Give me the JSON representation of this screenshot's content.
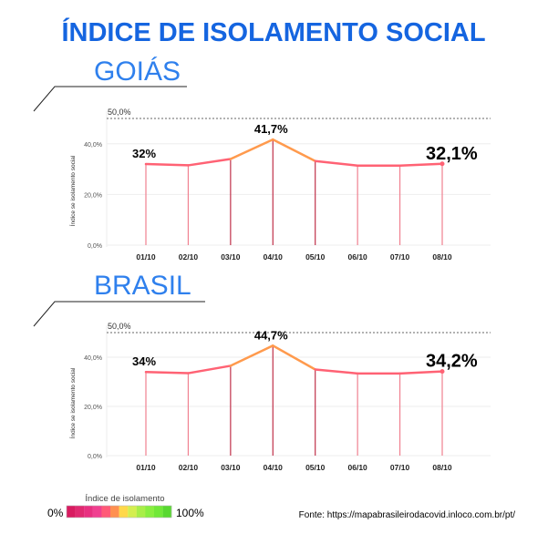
{
  "title": "ÍNDICE DE ISOLAMENTO SOCIAL",
  "colors": {
    "title": "#1565e0",
    "subtitle": "#2f80ed",
    "line_low": "#ff6274",
    "line_peak": "#ff9a4d",
    "stem_light": "#f08090",
    "stem_dark": "#c0304a",
    "grid": "#eeeeee",
    "ref": "#999999"
  },
  "chart_data": [
    {
      "type": "line",
      "title": "GOIÁS",
      "ylabel": "Índice se isolamento social",
      "categories": [
        "01/10",
        "02/10",
        "03/10",
        "04/10",
        "05/10",
        "06/10",
        "07/10",
        "08/10"
      ],
      "values": [
        32,
        31.5,
        34,
        41.7,
        33.2,
        31.4,
        31.4,
        32.1
      ],
      "ylim": [
        0,
        50
      ],
      "yticks": [
        "0,0%",
        "20,0%",
        "40,0%"
      ],
      "reference_line": {
        "value": 50,
        "label": "50,0%"
      },
      "annotations": [
        {
          "index": 0,
          "label": "32%"
        },
        {
          "index": 3,
          "label": "41,7%"
        },
        {
          "index": 7,
          "label": "32,1%"
        }
      ]
    },
    {
      "type": "line",
      "title": "BRASIL",
      "ylabel": "Índice se isolamento social",
      "categories": [
        "01/10",
        "02/10",
        "03/10",
        "04/10",
        "05/10",
        "06/10",
        "07/10",
        "08/10"
      ],
      "values": [
        34,
        33.5,
        36.5,
        44.7,
        35,
        33.4,
        33.4,
        34.2
      ],
      "ylim": [
        0,
        50
      ],
      "yticks": [
        "0,0%",
        "20,0%",
        "40,0%"
      ],
      "reference_line": {
        "value": 50,
        "label": "50,0%"
      },
      "annotations": [
        {
          "index": 0,
          "label": "34%"
        },
        {
          "index": 3,
          "label": "44,7%"
        },
        {
          "index": 7,
          "label": "34,2%"
        }
      ]
    }
  ],
  "legend": {
    "title": "Índice de isolamento",
    "min_label": "0%",
    "max_label": "100%",
    "swatches": [
      "#d81b60",
      "#e02970",
      "#e83080",
      "#f04090",
      "#ff5a78",
      "#ff9050",
      "#ffd84a",
      "#d4ee50",
      "#a8ee48",
      "#88ee40",
      "#70e838",
      "#58d830"
    ]
  },
  "source": "Fonte: https://mapabrasileirodacovid.inloco.com.br/pt/"
}
